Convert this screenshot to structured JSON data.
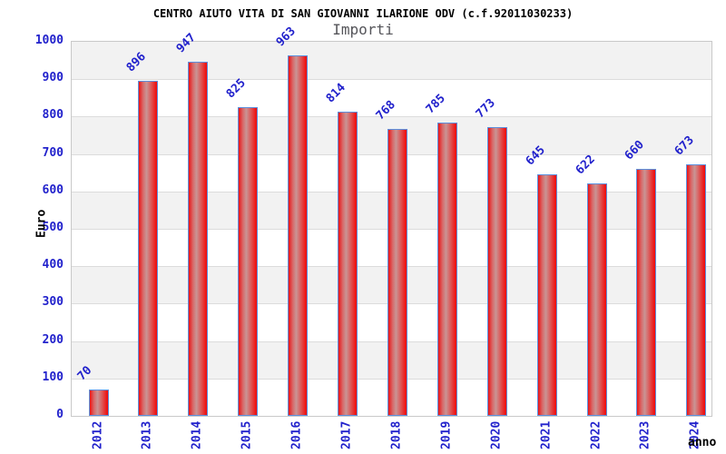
{
  "chart_data": {
    "type": "bar",
    "title": "CENTRO AIUTO VITA DI SAN GIOVANNI ILARIONE ODV (c.f.92011030233)",
    "subtitle": "Importi",
    "xlabel": "anno",
    "ylabel": "Euro",
    "categories": [
      "2012",
      "2013",
      "2014",
      "2015",
      "2016",
      "2017",
      "2018",
      "2019",
      "2020",
      "2021",
      "2022",
      "2023",
      "2024"
    ],
    "values": [
      70,
      896,
      947,
      825,
      963,
      814,
      768,
      785,
      773,
      645,
      622,
      660,
      673
    ],
    "ylim": [
      0,
      1000
    ],
    "ytick_step": 100,
    "grid": "horizontal-bands",
    "legend": "none",
    "colors": {
      "label_blue": "#2222cc",
      "bar_red_edge": "#ee1212",
      "bar_red_mid": "#d96666",
      "bar_light_center": "#c99595",
      "bar_border_blue": "#5c8fdd",
      "band_gray": "#f2f2f2",
      "band_white": "#ffffff",
      "gridline_gray": "#dcdcdc",
      "plot_border_gray": "#c9c9c9",
      "title_black": "#000000",
      "subtitle_gray": "#55555a"
    }
  }
}
